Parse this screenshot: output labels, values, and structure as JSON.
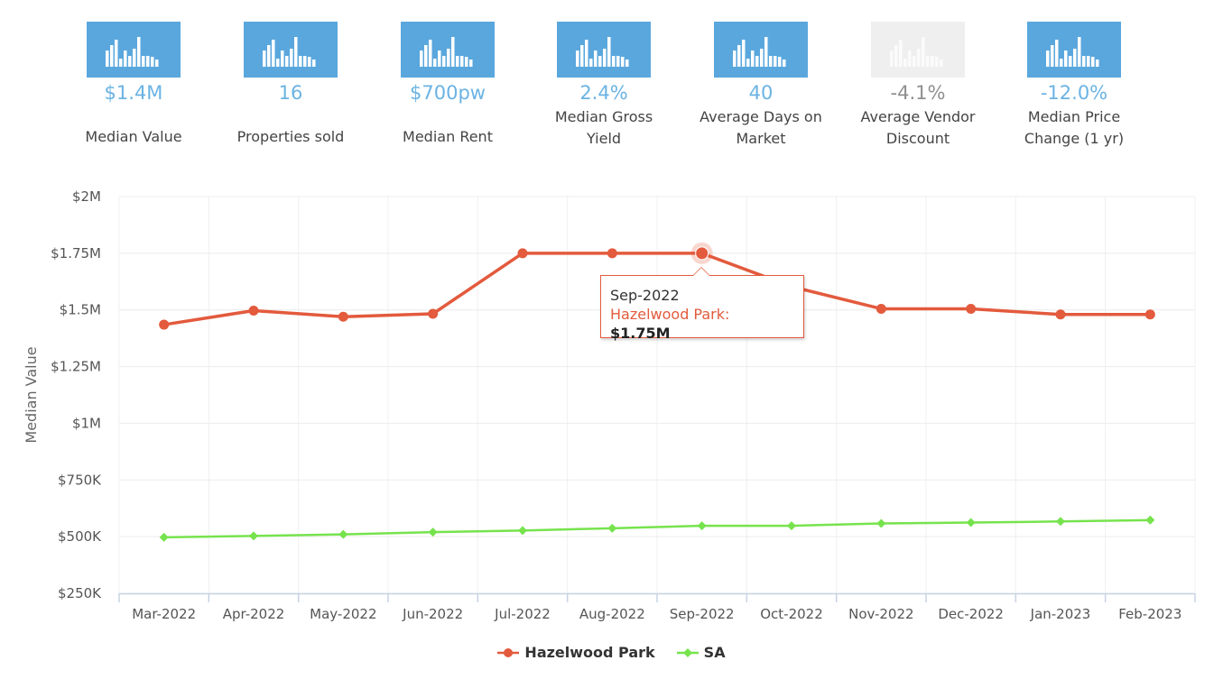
{
  "stats": [
    {
      "value": "$1.4M",
      "label": "Median Value",
      "faded": false
    },
    {
      "value": "16",
      "label": "Properties sold",
      "faded": false
    },
    {
      "value": "$700pw",
      "label": "Median Rent",
      "faded": false
    },
    {
      "value": "2.4%",
      "label": "Median Gross Yield",
      "faded": false
    },
    {
      "value": "40",
      "label": "Average Days on Market",
      "faded": false
    },
    {
      "value": "-4.1%",
      "label": "Average Vendor Discount",
      "faded": true
    },
    {
      "value": "-12.0%",
      "label": "Median Price Change (1 yr)",
      "faded": false
    }
  ],
  "icons": {
    "stat": "bar-chart-icon"
  },
  "colors": {
    "hazelwood": "#e35a3d",
    "sa": "#76e34d",
    "stat_blue": "#5aa7dd",
    "value_blue": "#6bb3e3"
  },
  "tooltip": {
    "date": "Sep-2022",
    "series": "Hazelwood Park",
    "value": "$1.75M"
  },
  "chart_data": {
    "type": "line",
    "x": [
      "Mar-2022",
      "Apr-2022",
      "May-2022",
      "Jun-2022",
      "Jul-2022",
      "Aug-2022",
      "Sep-2022",
      "Oct-2022",
      "Nov-2022",
      "Dec-2022",
      "Jan-2023",
      "Feb-2023"
    ],
    "ylabel": "Median Value",
    "ylim": [
      250000,
      2000000
    ],
    "yticks": [
      250000,
      500000,
      750000,
      1000000,
      1250000,
      1500000,
      1750000,
      2000000
    ],
    "ytick_labels": [
      "$250K",
      "$500K",
      "$750K",
      "$1M",
      "$1.25M",
      "$1.5M",
      "$1.75M",
      "$2M"
    ],
    "grid": true,
    "legend_position": "bottom-center",
    "series": [
      {
        "name": "Hazelwood Park",
        "color": "#e35a3d",
        "marker": "circle",
        "values": [
          1435000,
          1497000,
          1470000,
          1483000,
          1750000,
          1750000,
          1750000,
          1603000,
          1505000,
          1505000,
          1480000,
          1480000
        ]
      },
      {
        "name": "SA",
        "color": "#76e34d",
        "marker": "diamond",
        "values": [
          497000,
          503000,
          510000,
          520000,
          527000,
          537000,
          548000,
          548000,
          558000,
          562000,
          567000,
          573000
        ]
      }
    ],
    "highlighted": {
      "series": "Hazelwood Park",
      "x": "Sep-2022"
    }
  }
}
